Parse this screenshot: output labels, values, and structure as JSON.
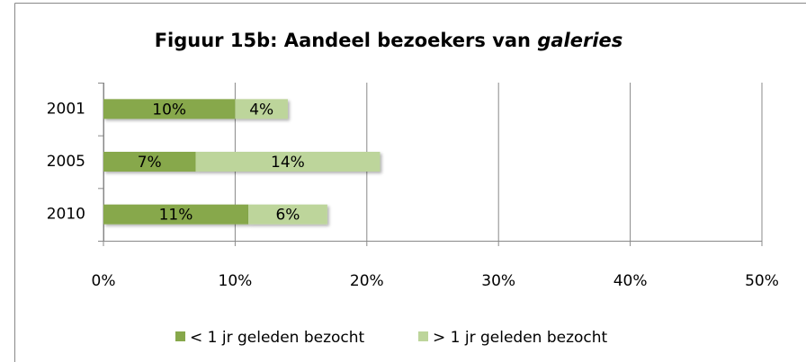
{
  "chart_data": {
    "type": "stacked-barh",
    "title_parts": [
      "Figuur 15b: Aandeel bezoekers van",
      "galeries"
    ],
    "categories": [
      "2001",
      "2005",
      "2010"
    ],
    "series": [
      {
        "name": "< 1 jr geleden bezocht",
        "color": "#87a84b",
        "values": [
          10,
          7,
          11
        ],
        "value_labels": [
          "10%",
          "7%",
          "11%"
        ]
      },
      {
        "name": "> 1 jr geleden bezocht",
        "color": "#bdd59b",
        "values": [
          4,
          14,
          6
        ],
        "value_labels": [
          "4%",
          "14%",
          "6%"
        ]
      }
    ],
    "xlim": [
      0,
      50
    ],
    "xticks": [
      {
        "value": 0,
        "label": "0%"
      },
      {
        "value": 10,
        "label": "10%"
      },
      {
        "value": 20,
        "label": "20%"
      },
      {
        "value": 30,
        "label": "30%"
      },
      {
        "value": 40,
        "label": "40%"
      },
      {
        "value": 50,
        "label": "50%"
      }
    ],
    "grid": true,
    "legend": "bottom"
  }
}
